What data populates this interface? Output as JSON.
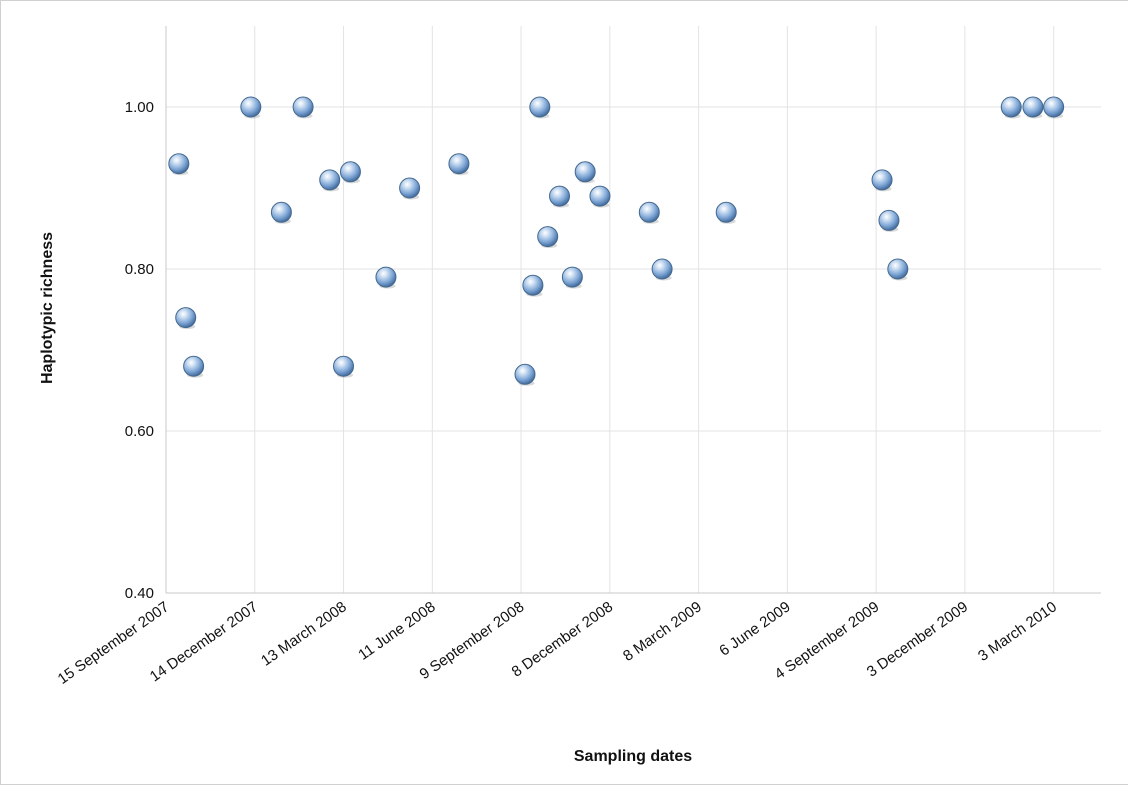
{
  "chart_data": {
    "type": "scatter",
    "xlabel": "Sampling dates",
    "ylabel": "Haplotypic richness",
    "ylim": [
      0.4,
      1.1
    ],
    "y_ticks": [
      {
        "value": 0.4,
        "label": "0.40"
      },
      {
        "value": 0.6,
        "label": "0.60"
      },
      {
        "value": 0.8,
        "label": "0.80"
      },
      {
        "value": 1.0,
        "label": "1.00"
      }
    ],
    "xlim": [
      "2007-09-15",
      "2010-04-20"
    ],
    "x_ticks": [
      {
        "value": "2007-09-15",
        "label": "15 September 2007"
      },
      {
        "value": "2007-12-14",
        "label": "14 December 2007"
      },
      {
        "value": "2008-03-13",
        "label": "13 March 2008"
      },
      {
        "value": "2008-06-11",
        "label": "11 June 2008"
      },
      {
        "value": "2008-09-09",
        "label": "9 September 2008"
      },
      {
        "value": "2008-12-08",
        "label": "8 December 2008"
      },
      {
        "value": "2009-03-08",
        "label": "8 March 2009"
      },
      {
        "value": "2009-06-06",
        "label": "6 June 2009"
      },
      {
        "value": "2009-09-04",
        "label": "4 September 2009"
      },
      {
        "value": "2009-12-03",
        "label": "3 December 2009"
      },
      {
        "value": "2010-03-03",
        "label": "3 March 2010"
      }
    ],
    "grid": true,
    "legend": "none",
    "marker_color": "#7ea6d6",
    "points": [
      {
        "x": "2007-09-28",
        "y": 0.93
      },
      {
        "x": "2007-10-05",
        "y": 0.74
      },
      {
        "x": "2007-10-13",
        "y": 0.68
      },
      {
        "x": "2007-12-10",
        "y": 1.0
      },
      {
        "x": "2008-01-10",
        "y": 0.87
      },
      {
        "x": "2008-02-01",
        "y": 1.0
      },
      {
        "x": "2008-02-28",
        "y": 0.91
      },
      {
        "x": "2008-03-13",
        "y": 0.68
      },
      {
        "x": "2008-03-20",
        "y": 0.92
      },
      {
        "x": "2008-04-25",
        "y": 0.79
      },
      {
        "x": "2008-05-19",
        "y": 0.9
      },
      {
        "x": "2008-07-08",
        "y": 0.93
      },
      {
        "x": "2008-09-13",
        "y": 0.67
      },
      {
        "x": "2008-09-21",
        "y": 0.78
      },
      {
        "x": "2008-09-28",
        "y": 1.0
      },
      {
        "x": "2008-10-06",
        "y": 0.84
      },
      {
        "x": "2008-10-18",
        "y": 0.89
      },
      {
        "x": "2008-10-31",
        "y": 0.79
      },
      {
        "x": "2008-11-13",
        "y": 0.92
      },
      {
        "x": "2008-11-28",
        "y": 0.89
      },
      {
        "x": "2009-01-17",
        "y": 0.87
      },
      {
        "x": "2009-01-30",
        "y": 0.8
      },
      {
        "x": "2009-04-05",
        "y": 0.87
      },
      {
        "x": "2009-09-10",
        "y": 0.91
      },
      {
        "x": "2009-09-17",
        "y": 0.86
      },
      {
        "x": "2009-09-26",
        "y": 0.8
      },
      {
        "x": "2010-01-19",
        "y": 1.0
      },
      {
        "x": "2010-02-10",
        "y": 1.0
      },
      {
        "x": "2010-03-03",
        "y": 1.0
      }
    ]
  }
}
